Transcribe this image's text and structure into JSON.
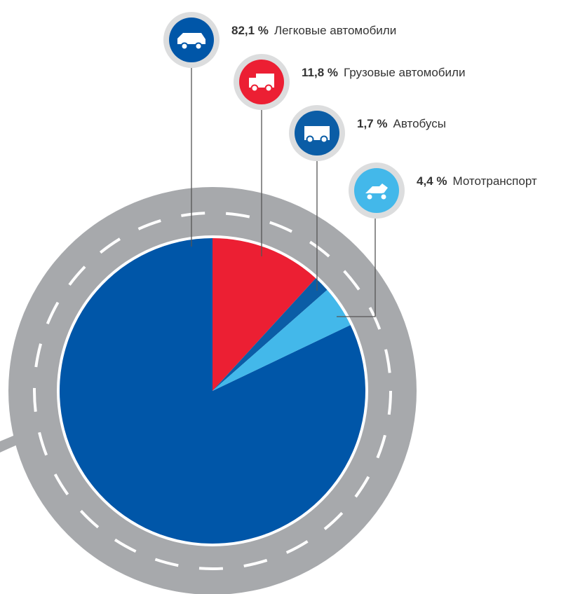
{
  "chart_data": {
    "type": "pie",
    "categories": [
      "Легковые автомобили",
      "Грузовые автомобили",
      "Автобусы",
      "Мототранспорт"
    ],
    "values": [
      82.1,
      11.8,
      1.7,
      4.4
    ],
    "value_labels": [
      "82,1 %",
      "11,8 %",
      "1,7 %",
      "4,4 %"
    ],
    "colors": [
      "#0056a8",
      "#ec1f33",
      "#0b5da6",
      "#43b8ea"
    ]
  }
}
